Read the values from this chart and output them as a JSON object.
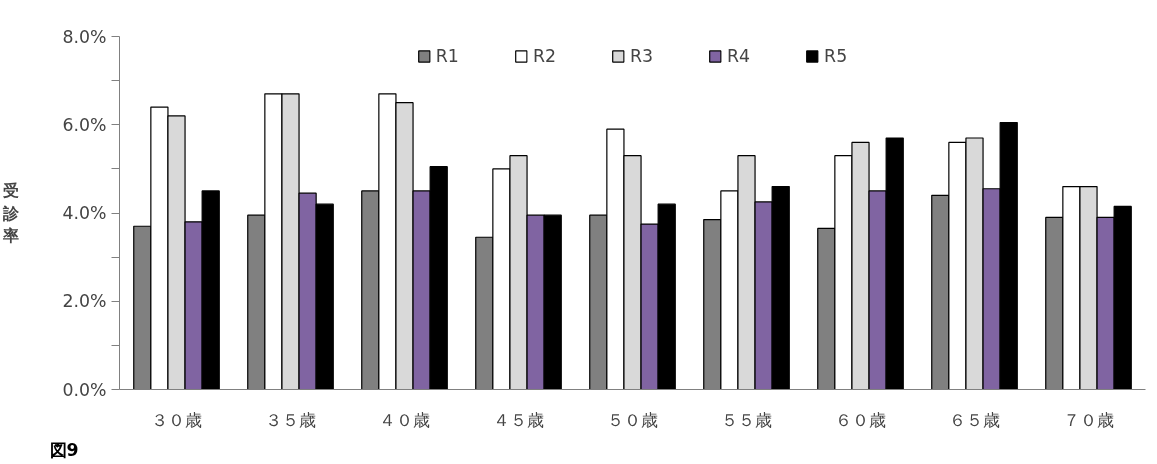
{
  "chart_data": {
    "type": "bar",
    "ylabel": "受診率",
    "categories": [
      "３０歳",
      "３５歳",
      "４０歳",
      "４５歳",
      "５０歳",
      "５５歳",
      "６０歳",
      "６５歳",
      "７０歳"
    ],
    "series": [
      {
        "name": "R1",
        "color": "#808080",
        "values": [
          3.7,
          3.95,
          4.5,
          3.45,
          3.95,
          3.85,
          3.65,
          4.4,
          3.9
        ]
      },
      {
        "name": "R2",
        "color": "#ffffff",
        "values": [
          6.4,
          6.7,
          6.7,
          5.0,
          5.9,
          4.5,
          5.3,
          5.6,
          4.6
        ]
      },
      {
        "name": "R3",
        "color": "#d9d9d9",
        "values": [
          6.2,
          6.7,
          6.5,
          5.3,
          5.3,
          5.3,
          5.6,
          5.7,
          4.6
        ]
      },
      {
        "name": "R4",
        "color": "#8064a2",
        "values": [
          3.8,
          4.45,
          4.5,
          3.95,
          3.75,
          4.25,
          4.5,
          4.55,
          3.9
        ]
      },
      {
        "name": "R5",
        "color": "#000000",
        "values": [
          4.5,
          4.2,
          5.05,
          3.95,
          4.2,
          4.6,
          5.7,
          6.05,
          4.15
        ]
      }
    ],
    "ylim": [
      0,
      8
    ],
    "yticks": [
      {
        "value": 0,
        "label": "0.0%"
      },
      {
        "value": 1,
        "label": null
      },
      {
        "value": 2,
        "label": "2.0%"
      },
      {
        "value": 3,
        "label": null
      },
      {
        "value": 4,
        "label": "4.0%"
      },
      {
        "value": 5,
        "label": null
      },
      {
        "value": 6,
        "label": "6.0%"
      },
      {
        "value": 7,
        "label": null
      },
      {
        "value": 8,
        "label": "8.0%"
      }
    ],
    "grid": false,
    "legend": "top",
    "annotations": [
      "図9"
    ]
  }
}
